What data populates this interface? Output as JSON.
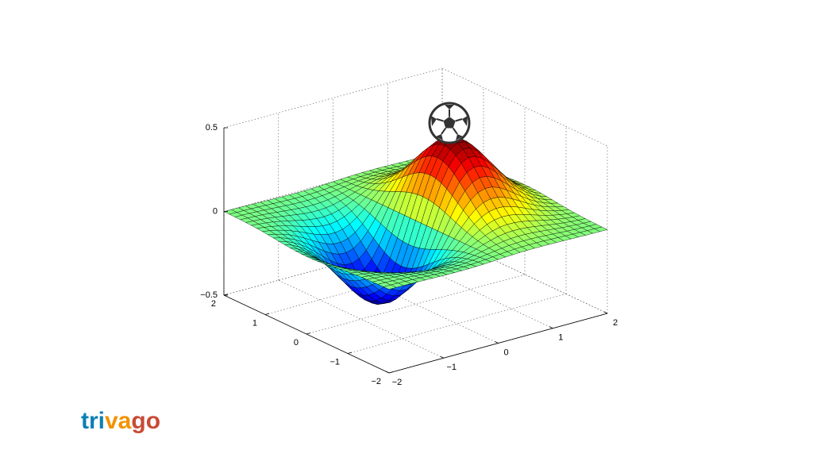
{
  "chart_data": {
    "type": "surface",
    "xlim": [
      -2,
      2
    ],
    "ylim": [
      -2,
      2
    ],
    "zlim": [
      -0.5,
      0.5
    ],
    "xticks": [
      {
        "value": -2,
        "label": "−2"
      },
      {
        "value": -1,
        "label": "−1"
      },
      0,
      1,
      2
    ],
    "yticks": [
      {
        "value": -2,
        "label": "−2"
      },
      {
        "value": -1,
        "label": "−1"
      },
      0,
      1,
      2
    ],
    "zticks": [
      {
        "value": -0.5,
        "label": "−0.5"
      },
      0,
      0.5
    ],
    "grid": true,
    "colormap": "jet"
  },
  "logo": [
    "tri",
    "va",
    "go"
  ]
}
